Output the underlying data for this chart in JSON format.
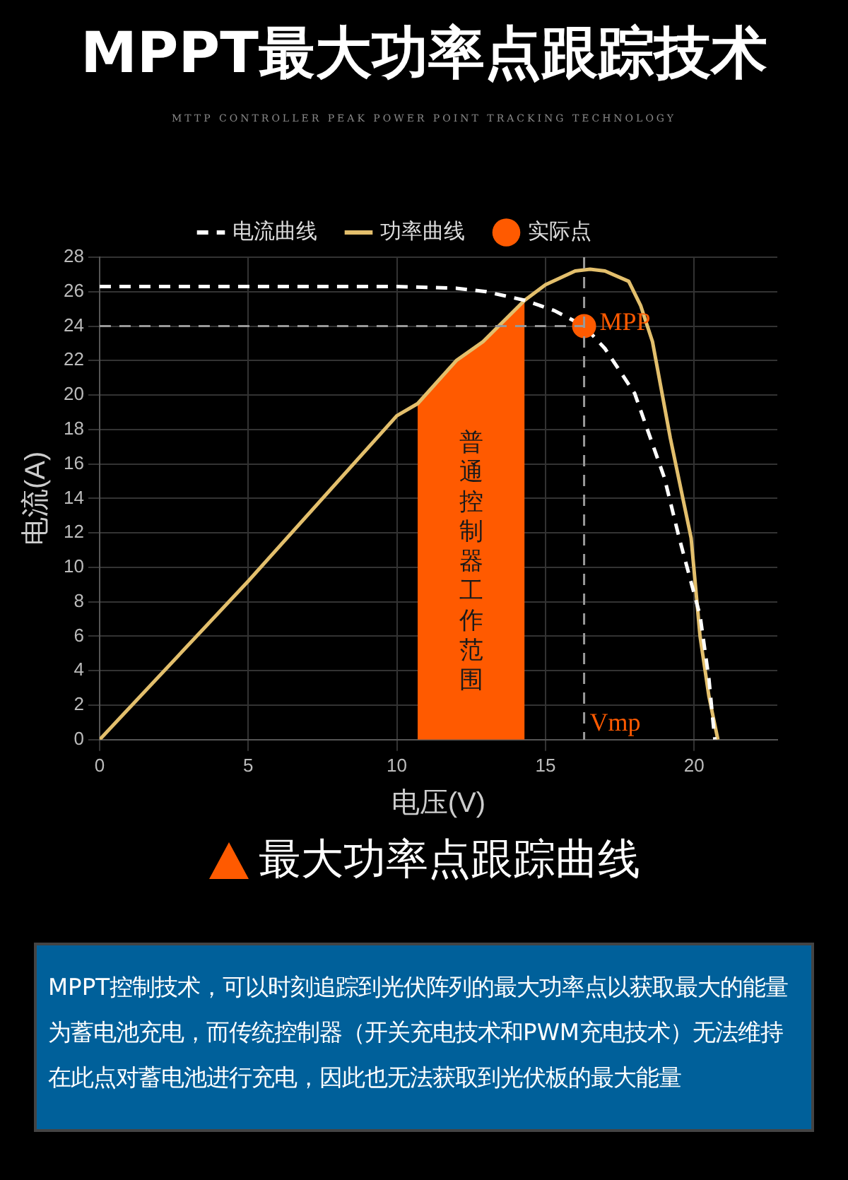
{
  "chart_data": {
    "type": "line",
    "title": "MPPT最大功率点跟踪技术",
    "subtitle": "MTTP CONTROLLER PEAK POWER POINT TRACKING TECHNOLOGY",
    "xlabel": "电压(V)",
    "ylabel": "电流(A)",
    "xlim": [
      0,
      22.8
    ],
    "xticks": [
      0,
      5,
      10,
      15,
      20
    ],
    "ylim": [
      0,
      28
    ],
    "yticks": [
      0,
      2,
      4,
      6,
      8,
      10,
      12,
      14,
      16,
      18,
      20,
      22,
      24,
      26,
      28
    ],
    "grid": true,
    "legend": "top",
    "series": [
      {
        "name": "电流曲线",
        "type": "line",
        "line_style": "dashed",
        "color": "#ffffff",
        "x": [
          0,
          5,
          10,
          12,
          13,
          14.3,
          15.3,
          16.3,
          17,
          18,
          19,
          19.5,
          20.2,
          20.5,
          20.65,
          20.7
        ],
        "values": [
          26.3,
          26.3,
          26.3,
          26.2,
          26.0,
          25.5,
          24.9,
          24,
          22.7,
          20.1,
          15.2,
          11.7,
          7.2,
          3.5,
          0.8,
          0
        ]
      },
      {
        "name": "功率曲线",
        "type": "line",
        "line_style": "solid",
        "color": "#e3bf6c",
        "x": [
          0,
          5,
          10,
          10.7,
          12,
          12.9,
          14.3,
          15,
          16,
          16.5,
          17,
          17.8,
          18.2,
          18.6,
          19.2,
          19.9,
          20.2,
          20.5,
          20.8
        ],
        "values": [
          0,
          9.2,
          18.8,
          19.5,
          22.0,
          23.1,
          25.5,
          26.4,
          27.2,
          27.3,
          27.2,
          26.6,
          25.2,
          23.1,
          17.5,
          11.7,
          6.0,
          2.5,
          0
        ]
      },
      {
        "name": "普通控制器工作范围",
        "type": "area",
        "color": "#ff5a00",
        "x": [
          10.7,
          12,
          12.9,
          14.3
        ],
        "values": [
          19.5,
          22.0,
          23.1,
          25.5
        ]
      },
      {
        "name": "实际点",
        "type": "scatter",
        "marker": "circle",
        "color": "#ff5a00",
        "x": [
          16.3
        ],
        "values": [
          24
        ]
      }
    ],
    "ref_lines": [
      {
        "axis": "x",
        "value": 16.3,
        "label": "Vmp",
        "color": "#999999",
        "line_style": "dashed"
      },
      {
        "axis": "y",
        "value": 24,
        "label": null,
        "color": "#999999",
        "line_style": "dashed"
      }
    ],
    "annotations": [
      {
        "text": "MPP",
        "x": 16.3,
        "y": 24
      },
      "最大功率点跟踪曲线",
      "MPPT控制技术，可以时刻追踪到光伏阵列的最大功率点以获取最大的能量为蓄电池充电，而传统控制器（开关充电技术和PWM充电技术）无法维持在此点对蓄电池进行充电，因此也无法获取到光伏板的最大能量"
    ]
  }
}
